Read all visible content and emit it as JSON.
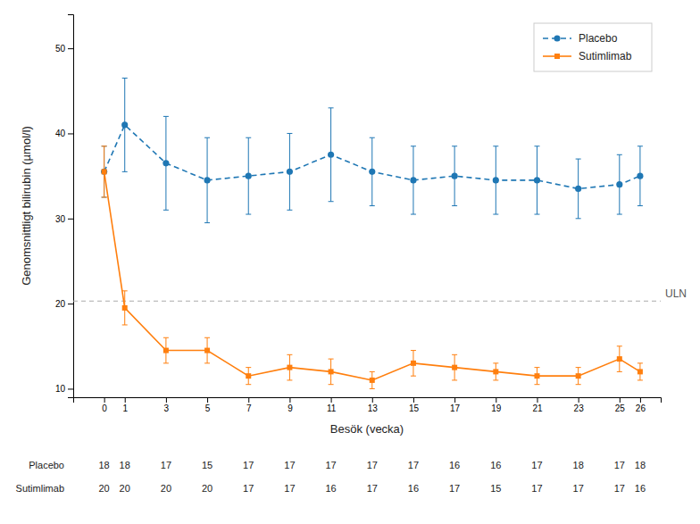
{
  "chart_data": {
    "type": "line",
    "xlabel": "Besök (vecka)",
    "ylabel": "Genomsnittligt bilirubin (µmol/l)",
    "x": [
      0,
      1,
      3,
      5,
      7,
      9,
      11,
      13,
      15,
      17,
      19,
      21,
      23,
      25,
      26
    ],
    "xlim": [
      -1.5,
      27.0
    ],
    "xticks": [
      0,
      1,
      3,
      5,
      7,
      9,
      11,
      13,
      15,
      17,
      19,
      21,
      23,
      25,
      26
    ],
    "ylim": [
      9,
      54
    ],
    "yticks": [
      10,
      20,
      30,
      40,
      50
    ],
    "grid": false,
    "legend": "upper right",
    "series": [
      {
        "name": "Placebo",
        "marker": "circle",
        "line_style": "dashed",
        "values": [
          35.5,
          41.0,
          36.5,
          34.5,
          35.0,
          35.5,
          37.5,
          35.5,
          34.5,
          35.0,
          34.5,
          34.5,
          33.5,
          34.0,
          35.0
        ],
        "errors": [
          3.0,
          5.5,
          5.5,
          5.0,
          4.5,
          4.5,
          5.5,
          4.0,
          4.0,
          3.5,
          4.0,
          4.0,
          3.5,
          3.5,
          3.5
        ],
        "n": [
          18,
          18,
          17,
          15,
          17,
          17,
          17,
          17,
          17,
          16,
          16,
          17,
          18,
          17,
          18
        ]
      },
      {
        "name": "Sutimlimab",
        "marker": "square",
        "line_style": "solid",
        "values": [
          35.5,
          19.5,
          14.5,
          14.5,
          11.5,
          12.5,
          12.0,
          11.0,
          13.0,
          12.5,
          12.0,
          11.5,
          11.5,
          13.5,
          12.0
        ],
        "errors": [
          3.0,
          2.0,
          1.5,
          1.5,
          1.0,
          1.5,
          1.5,
          1.0,
          1.5,
          1.5,
          1.0,
          1.0,
          1.0,
          1.5,
          1.0
        ],
        "n": [
          20,
          20,
          20,
          20,
          17,
          17,
          16,
          17,
          16,
          17,
          15,
          17,
          17,
          17,
          16
        ]
      }
    ],
    "reference_lines": [
      {
        "value": 20.3,
        "label": "ULN"
      }
    ]
  }
}
